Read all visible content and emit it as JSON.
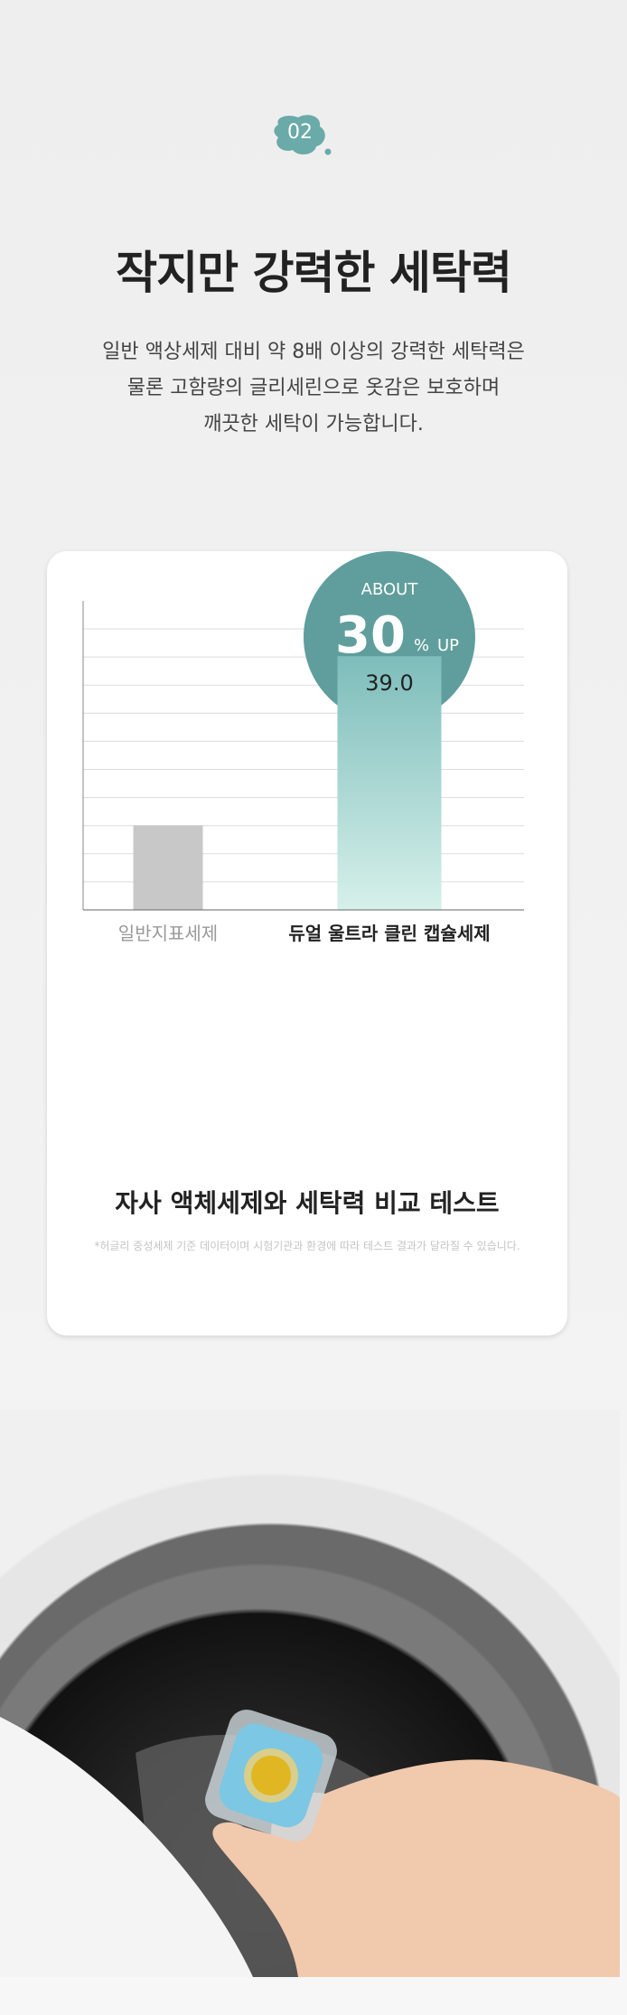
{
  "section": {
    "number": "02",
    "title": "작지만 강력한 세탁력",
    "description": [
      "일반 액상세제 대비 약 8배 이상의 강력한 세탁력은",
      "물론 고함량의 글리세린으로 옷감은 보호하며",
      "깨끗한 세탁이 가능합니다."
    ]
  },
  "colors": {
    "accent": "#5f9e9c",
    "bar_gray": "#c8c8c8",
    "bar_teal_top": "#7dbdbb",
    "bar_teal_bottom": "#d6f0ea"
  },
  "callout": {
    "top": "ABOUT",
    "number": "30",
    "unit": "%",
    "suffix": "UP"
  },
  "chart_data": {
    "type": "bar",
    "categories": [
      "일반지표세제",
      "듀얼 울트라 클린 캡슐세제"
    ],
    "values": [
      13,
      39.0
    ],
    "data_labels": [
      "",
      "39.0"
    ],
    "ylim": [
      0,
      47.5
    ],
    "grid": true,
    "title": "자사 액체세제와 세탁력 비교 테스트",
    "xlabel": "",
    "ylabel": ""
  },
  "footnote": "*허글리 중성세제 기준 데이터이며 시험기관과 환경에 따라 테스트 결과가 달라질 수 있습니다.",
  "photo": {
    "icon": "hand-holding-capsule-washing-machine-photo"
  }
}
